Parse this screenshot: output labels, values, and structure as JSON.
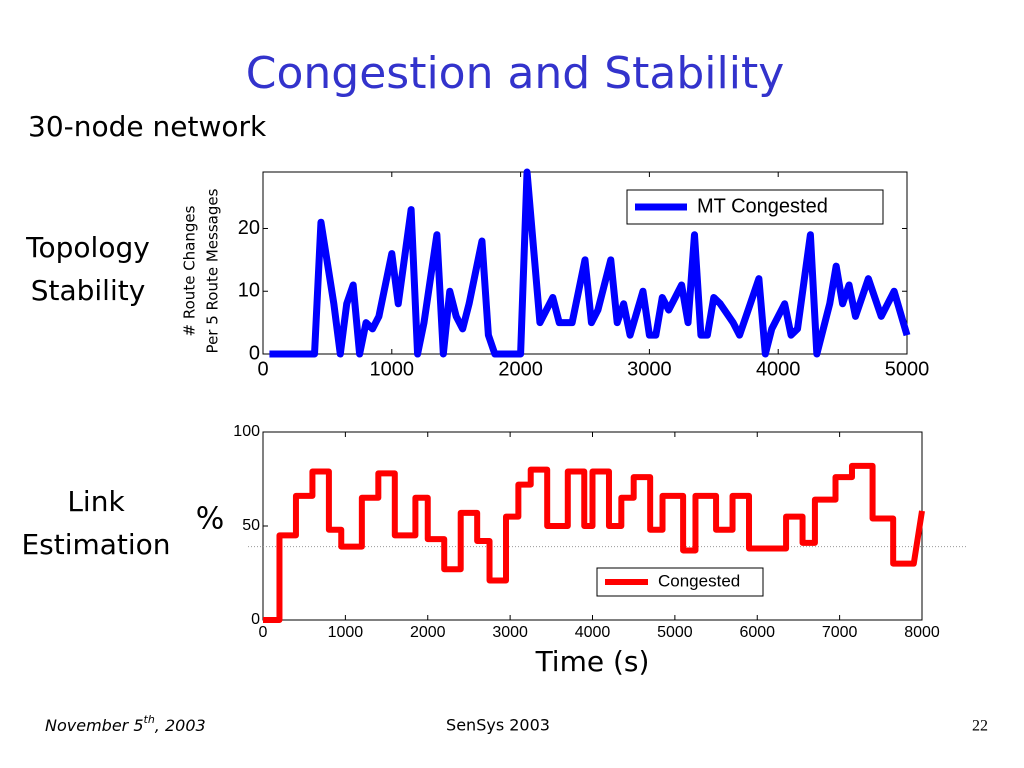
{
  "slide": {
    "title": "Congestion and Stability",
    "subtitle": "30-node network",
    "label_top": [
      "Topology",
      "Stability"
    ],
    "label_bottom": [
      "Link",
      "Estimation"
    ],
    "footer": {
      "date": [
        "November 5",
        "th",
        ", 2003"
      ],
      "venue": "SenSys 2003",
      "page": "22"
    }
  },
  "chart_data": [
    {
      "type": "line",
      "ylabel": [
        "# Route Changes",
        "Per 5 Route Messages"
      ],
      "xlim": [
        0,
        5000
      ],
      "ylim": [
        0,
        29
      ],
      "xticks": [
        0,
        1000,
        2000,
        3000,
        4000,
        5000
      ],
      "yticks": [
        0,
        10,
        20
      ],
      "legend": "upper right",
      "series": [
        {
          "name": "MT Congested",
          "color": "#0000ff",
          "x": [
            50,
            400,
            450,
            550,
            600,
            650,
            700,
            750,
            800,
            850,
            900,
            1000,
            1050,
            1150,
            1200,
            1250,
            1350,
            1400,
            1450,
            1500,
            1550,
            1600,
            1700,
            1750,
            1800,
            1900,
            2000,
            2050,
            2150,
            2250,
            2300,
            2400,
            2500,
            2550,
            2600,
            2700,
            2750,
            2800,
            2850,
            2950,
            3000,
            3050,
            3100,
            3150,
            3250,
            3300,
            3350,
            3400,
            3450,
            3500,
            3550,
            3650,
            3700,
            3750,
            3850,
            3900,
            3950,
            4050,
            4100,
            4150,
            4250,
            4300,
            4400,
            4450,
            4500,
            4550,
            4600,
            4700,
            4800,
            4900,
            5000
          ],
          "values": [
            0,
            0,
            21,
            8,
            0,
            8,
            11,
            0,
            5,
            4,
            6,
            16,
            8,
            23,
            0,
            5,
            19,
            0,
            10,
            6,
            4,
            8,
            18,
            3,
            0,
            0,
            0,
            29,
            5,
            9,
            5,
            5,
            15,
            5,
            7,
            15,
            5,
            8,
            3,
            10,
            3,
            3,
            9,
            7,
            11,
            5,
            19,
            3,
            3,
            9,
            8,
            5,
            3,
            6,
            12,
            0,
            4,
            8,
            3,
            4,
            19,
            0,
            8,
            14,
            8,
            11,
            6,
            12,
            6,
            10,
            3
          ]
        }
      ]
    },
    {
      "type": "line",
      "ylabel": "%",
      "xlabel": "Time (s)",
      "xlim": [
        0,
        8000
      ],
      "ylim": [
        0,
        100
      ],
      "xticks": [
        0,
        1000,
        2000,
        3000,
        4000,
        5000,
        6000,
        7000,
        8000
      ],
      "yticks": [
        0,
        50,
        100
      ],
      "legend": "lower right",
      "reference": 39,
      "reference_color": "#999999",
      "series": [
        {
          "name": "Congested",
          "color": "#ff0000",
          "x": [
            0,
            200,
            200,
            400,
            400,
            600,
            600,
            800,
            800,
            950,
            950,
            1200,
            1200,
            1400,
            1400,
            1600,
            1600,
            1850,
            1850,
            2000,
            2000,
            2200,
            2200,
            2400,
            2400,
            2600,
            2600,
            2750,
            2750,
            2950,
            2950,
            3100,
            3100,
            3250,
            3250,
            3450,
            3450,
            3700,
            3700,
            3900,
            3900,
            4000,
            4000,
            4200,
            4200,
            4350,
            4350,
            4500,
            4500,
            4700,
            4700,
            4850,
            4850,
            5100,
            5100,
            5250,
            5250,
            5500,
            5500,
            5700,
            5700,
            5900,
            5900,
            6350,
            6350,
            6550,
            6550,
            6700,
            6700,
            6950,
            6950,
            7150,
            7150,
            7400,
            7400,
            7650,
            7650,
            7900,
            8000
          ],
          "values": [
            0,
            0,
            45,
            45,
            66,
            66,
            79,
            79,
            48,
            48,
            39,
            39,
            65,
            65,
            78,
            78,
            45,
            45,
            65,
            65,
            43,
            43,
            27,
            27,
            57,
            57,
            42,
            42,
            21,
            21,
            55,
            55,
            72,
            72,
            80,
            80,
            50,
            50,
            79,
            79,
            50,
            50,
            79,
            79,
            50,
            50,
            65,
            65,
            76,
            76,
            48,
            48,
            66,
            66,
            37,
            37,
            66,
            66,
            48,
            48,
            66,
            66,
            38,
            38,
            55,
            55,
            41,
            41,
            64,
            64,
            76,
            76,
            82,
            82,
            54,
            54,
            30,
            30,
            58
          ]
        }
      ]
    }
  ]
}
